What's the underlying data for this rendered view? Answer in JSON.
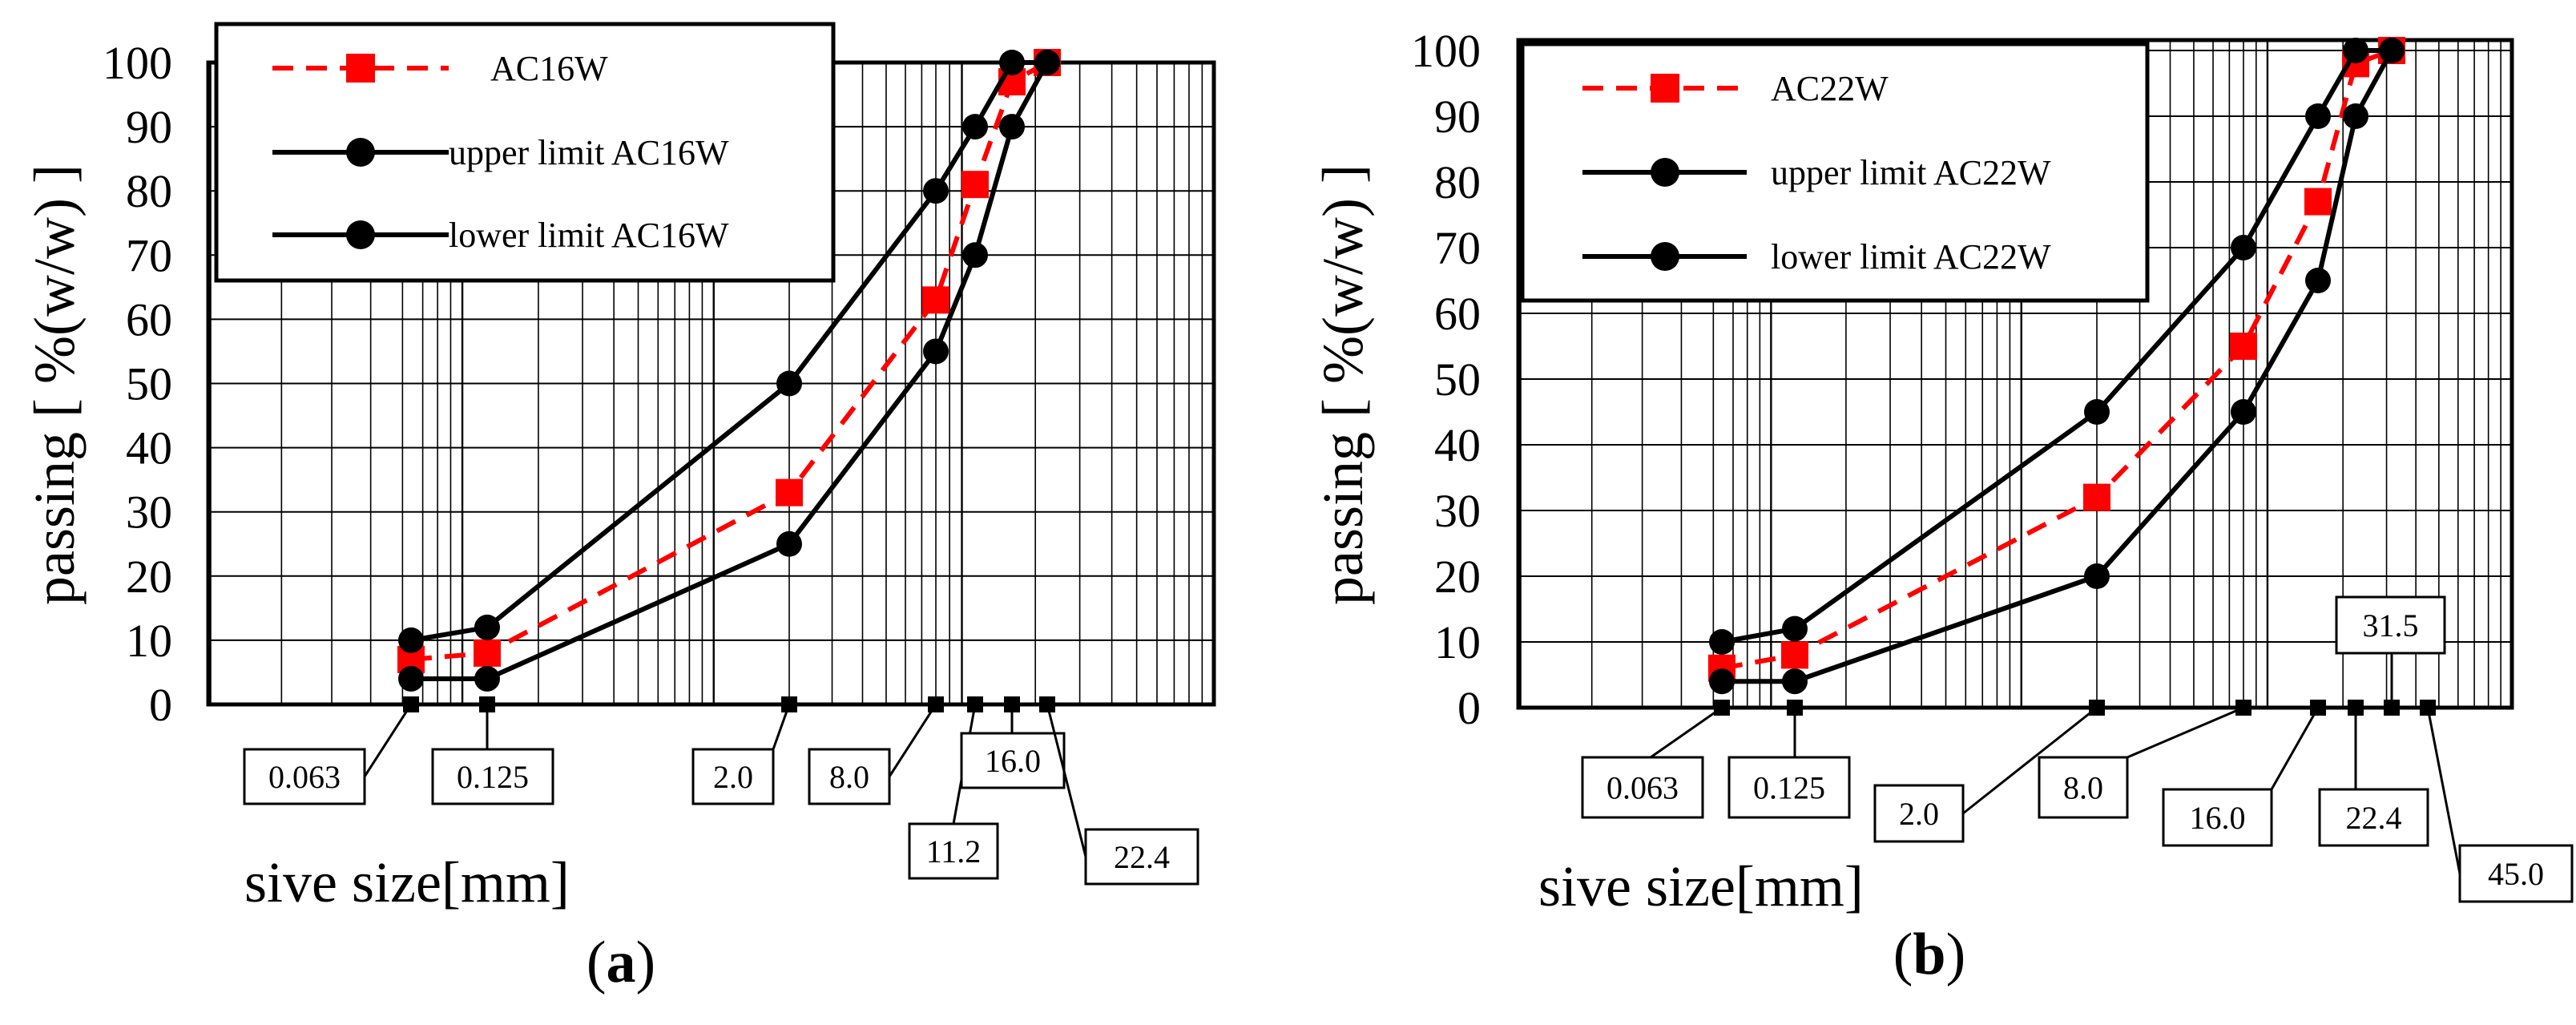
{
  "chart_data": [
    {
      "id": "a",
      "type": "line",
      "panel_label": "(a)",
      "panel_letter": "a",
      "xscale": "log",
      "xlabel": "sive size[mm]",
      "ylabel": "passing [ %(w/w) ]",
      "ylim": [
        0,
        100
      ],
      "yticks": [
        0,
        10,
        20,
        30,
        40,
        50,
        60,
        70,
        80,
        90,
        100
      ],
      "grid": true,
      "legend_position": "top-left",
      "series": [
        {
          "name": "AC16W",
          "style": "dashed",
          "color": "#ff0000",
          "marker": "square",
          "x": [
            0.063,
            0.125,
            2.0,
            8.0,
            11.2,
            16.0,
            22.4
          ],
          "y": [
            7,
            8,
            33,
            63,
            81,
            97,
            100
          ]
        },
        {
          "name": "upper limit AC16W",
          "style": "solid",
          "color": "#000000",
          "marker": "circle",
          "x": [
            0.063,
            0.125,
            2.0,
            8.0,
            11.2,
            16.0,
            22.4
          ],
          "y": [
            10,
            12,
            50,
            80,
            90,
            100,
            100
          ]
        },
        {
          "name": "lower limit AC16W",
          "style": "solid",
          "color": "#000000",
          "marker": "circle",
          "x": [
            0.063,
            0.125,
            2.0,
            8.0,
            11.2,
            16.0,
            22.4
          ],
          "y": [
            4,
            4,
            25,
            55,
            70,
            90,
            100
          ]
        }
      ],
      "sieve_sizes": [
        0.063,
        0.125,
        2.0,
        8.0,
        11.2,
        16.0,
        22.4
      ],
      "sieve_labels": [
        "0.063",
        "0.125",
        "2.0",
        "8.0",
        "11.2",
        "16.0",
        "22.4"
      ]
    },
    {
      "id": "b",
      "type": "line",
      "panel_label": "(b)",
      "panel_letter": "b",
      "xscale": "log",
      "xlabel": "sive size[mm]",
      "ylabel": "passing [ %(w/w) ]",
      "ylim": [
        0,
        100
      ],
      "yticks": [
        0,
        10,
        20,
        30,
        40,
        50,
        60,
        70,
        80,
        90,
        100
      ],
      "grid": true,
      "legend_position": "top-left",
      "series": [
        {
          "name": "AC22W",
          "style": "dashed",
          "color": "#ff0000",
          "marker": "square",
          "x": [
            0.063,
            0.125,
            2.0,
            8.0,
            16.0,
            22.4,
            31.5
          ],
          "y": [
            6,
            8,
            32,
            55,
            77,
            98,
            100
          ]
        },
        {
          "name": "upper limit AC22W",
          "style": "solid",
          "color": "#000000",
          "marker": "circle",
          "x": [
            0.063,
            0.125,
            2.0,
            8.0,
            16.0,
            22.4,
            31.5
          ],
          "y": [
            10,
            12,
            45,
            70,
            90,
            100,
            100
          ]
        },
        {
          "name": "lower limit AC22W",
          "style": "solid",
          "color": "#000000",
          "marker": "circle",
          "x": [
            0.063,
            0.125,
            2.0,
            8.0,
            16.0,
            22.4,
            31.5
          ],
          "y": [
            4,
            4,
            20,
            45,
            65,
            90,
            100
          ]
        }
      ],
      "sieve_sizes": [
        0.063,
        0.125,
        2.0,
        8.0,
        16.0,
        22.4,
        31.5,
        45.0
      ],
      "sieve_labels": [
        "0.063",
        "0.125",
        "2.0",
        "8.0",
        "16.0",
        "22.4",
        "31.5",
        "45.0"
      ]
    }
  ]
}
